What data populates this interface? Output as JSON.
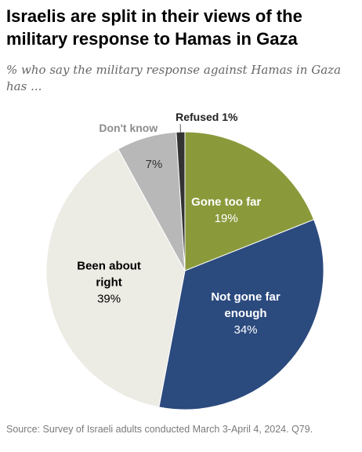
{
  "header": {
    "title": "Israelis are split in their views of the military response to Hamas in Gaza",
    "subtitle": "% who say the military response against Hamas in Gaza has ..."
  },
  "chart_data": {
    "type": "pie",
    "title": "Israelis are split in their views of the military response to Hamas in Gaza",
    "subtitle": "% who say the military response against Hamas in Gaza has ...",
    "start": "12 o'clock",
    "direction": "clockwise",
    "slices": [
      {
        "label": "Gone too far",
        "value": 19,
        "value_label": "19%",
        "color": "#8a9a3b",
        "text_color": "#ffffff"
      },
      {
        "label": "Not gone far enough",
        "value": 34,
        "value_label": "34%",
        "color": "#2b4a7e",
        "text_color": "#ffffff"
      },
      {
        "label": "Been about right",
        "value": 39,
        "value_label": "39%",
        "color": "#ecebe4",
        "text_color": "#000000"
      },
      {
        "label": "Don't know",
        "value": 7,
        "value_label": "7%",
        "color": "#b8b8b8",
        "text_color": "#333333"
      },
      {
        "label": "Refused",
        "value": 1,
        "value_label": "1%",
        "color": "#333333",
        "text_color": "#222222"
      }
    ]
  },
  "footer": {
    "source": "Source: Survey of Israeli adults conducted March 3-April 4, 2024. Q79."
  }
}
